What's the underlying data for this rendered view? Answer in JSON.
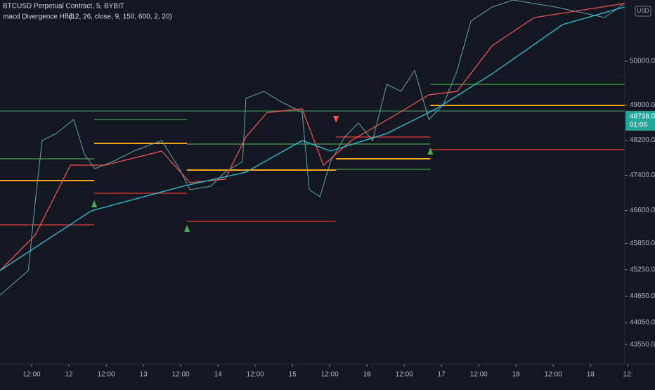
{
  "header": {
    "symbol": "BTCUSD Perpetual Contract, 5, BYBIT",
    "indicator": "macd Divergence Hffd",
    "params": "(12, 26, close, 9, 150, 600, 2, 20)",
    "currency": "USD"
  },
  "chart_data": {
    "type": "line",
    "xlim": [
      -0.85,
      15.9
    ],
    "ylim": [
      43104,
      51392
    ],
    "xticks": [
      "12:00",
      "12",
      "12:00",
      "13",
      "12:00",
      "14",
      "12:00",
      "15",
      "12:00",
      "16",
      "12:00",
      "17",
      "12:00",
      "18",
      "12:00",
      "19",
      "12:"
    ],
    "yticks": [
      {
        "value": 50000,
        "label": "50000.0"
      },
      {
        "value": 49000,
        "label": "49000.0"
      },
      {
        "value": 48200,
        "label": "48200.0"
      },
      {
        "value": 47400,
        "label": "47400.0"
      },
      {
        "value": 46600,
        "label": "46600.0"
      },
      {
        "value": 45850,
        "label": "45850.0"
      },
      {
        "value": 45250,
        "label": "45250.0"
      },
      {
        "value": 44650,
        "label": "44650.0"
      },
      {
        "value": 44050,
        "label": "44050.0"
      },
      {
        "value": 43550,
        "label": "43550.0"
      }
    ],
    "series": [
      {
        "color": "#5fa8a0",
        "x": [
          -0.85,
          -0.09,
          0.09,
          0.28,
          0.66,
          1.13,
          1.42,
          1.7,
          2.17,
          2.74,
          3.49,
          3.96,
          4.25,
          4.81,
          5.19,
          5.66,
          5.75,
          6.23,
          6.7,
          7.26,
          7.45,
          7.74,
          8.02,
          8.4,
          8.77,
          9.15,
          9.53,
          9.91,
          10.28,
          10.66,
          11.04,
          11.42,
          11.79,
          12.36,
          12.92,
          14.06,
          15.38,
          15.91
        ],
        "values": [
          44672,
          45232,
          46752,
          48192,
          48352,
          48672,
          47872,
          47552,
          47712,
          47952,
          48192,
          47552,
          47072,
          47152,
          47472,
          47712,
          49152,
          49312,
          49072,
          48832,
          47072,
          46912,
          47712,
          48272,
          48592,
          48192,
          49472,
          49312,
          49792,
          48672,
          48992,
          49792,
          50912,
          51232,
          51392,
          51232,
          50992,
          51312
        ]
      },
      {
        "color": "#ef5350",
        "x": [
          -0.85,
          0.09,
          1.04,
          1.98,
          3.49,
          4.25,
          5.19,
          5.75,
          6.32,
          7.26,
          7.83,
          8.58,
          9.72,
          10.66,
          11.42,
          12.36,
          13.49,
          15.91
        ],
        "values": [
          45232,
          46032,
          47632,
          47632,
          47952,
          47232,
          47312,
          48272,
          48832,
          48912,
          47632,
          48192,
          48752,
          49232,
          49312,
          50352,
          50992,
          51312
        ]
      },
      {
        "color": "#26c6da",
        "x": [
          -0.85,
          1.6,
          4.06,
          5.75,
          7.26,
          8.02,
          9.53,
          10.85,
          12.36,
          14.25,
          15.91
        ],
        "values": [
          45232,
          46592,
          47152,
          47472,
          48192,
          47952,
          48352,
          48912,
          49712,
          50832,
          51232
        ]
      }
    ],
    "levels": [
      {
        "color": "#3d8b5a",
        "value": 48864,
        "x0": -0.85,
        "x1": 15.91
      },
      {
        "color": "#43a047",
        "value": 47776,
        "x0": -0.85,
        "x1": 1.68
      },
      {
        "color": "#43a047",
        "value": 48672,
        "x0": 1.68,
        "x1": 4.17
      },
      {
        "color": "#43a047",
        "value": 48112,
        "x0": 4.17,
        "x1": 10.7
      },
      {
        "color": "#43a047",
        "value": 47536,
        "x0": 8.17,
        "x1": 10.7
      },
      {
        "color": "#43a047",
        "value": 49472,
        "x0": 10.7,
        "x1": 15.91
      },
      {
        "color": "#f5a623",
        "value": 47280,
        "x0": -0.85,
        "x1": 1.68
      },
      {
        "color": "#f5a623",
        "value": 48128,
        "x0": 1.68,
        "x1": 4.17
      },
      {
        "color": "#f5a623",
        "value": 47520,
        "x0": 4.17,
        "x1": 8.17
      },
      {
        "color": "#f5a623",
        "value": 47776,
        "x0": 8.17,
        "x1": 10.7
      },
      {
        "color": "#f5a623",
        "value": 48992,
        "x0": 10.7,
        "x1": 15.91
      },
      {
        "color": "#e53935",
        "value": 46272,
        "x0": -0.85,
        "x1": 1.68
      },
      {
        "color": "#e53935",
        "value": 46992,
        "x0": 1.68,
        "x1": 4.17
      },
      {
        "color": "#e53935",
        "value": 46352,
        "x0": 4.17,
        "x1": 8.17
      },
      {
        "color": "#e53935",
        "value": 48272,
        "x0": 8.17,
        "x1": 10.7
      },
      {
        "color": "#e53935",
        "value": 47984,
        "x0": 10.7,
        "x1": 15.91
      }
    ],
    "markers": [
      {
        "color": "#4caf50",
        "x": 1.68,
        "value": 46752,
        "dir": "up"
      },
      {
        "color": "#4caf50",
        "x": 4.17,
        "value": 46192,
        "dir": "up"
      },
      {
        "color": "#4caf50",
        "x": 10.7,
        "value": 47952,
        "dir": "up"
      },
      {
        "color": "#ef5350",
        "x": 8.17,
        "value": 48672,
        "dir": "down"
      }
    ],
    "last_price": {
      "value": 48738,
      "label": "48738.0",
      "countdown": "01:06",
      "color": "#26a69a"
    }
  }
}
